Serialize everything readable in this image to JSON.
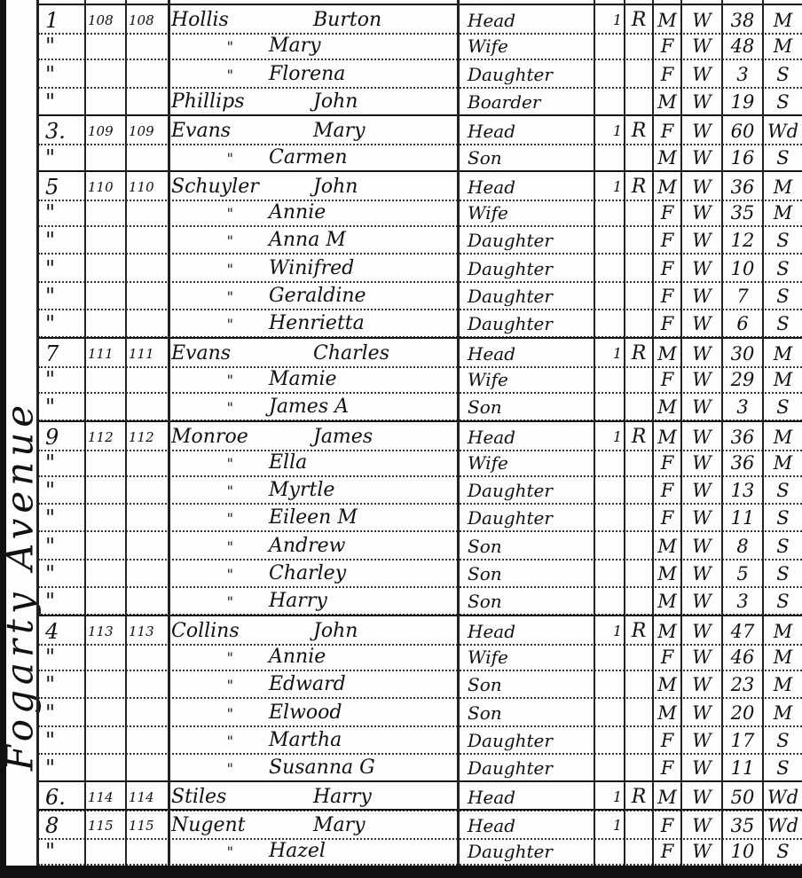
{
  "street_name": "Fogarty Avenue",
  "rows": [
    {
      "line": "1",
      "dwelling": "108",
      "family": "108",
      "surname": "Hollis",
      "given": "Burton",
      "relation": "Head",
      "owned": "1",
      "tenure": "R",
      "sex": "M",
      "race": "W",
      "age": "38",
      "marital": "M"
    },
    {
      "line": "\"",
      "dwelling": "",
      "family": "",
      "surname": "\"",
      "given": "Mary",
      "relation": "Wife",
      "owned": "",
      "tenure": "",
      "sex": "F",
      "race": "W",
      "age": "48",
      "marital": "M"
    },
    {
      "line": "\"",
      "dwelling": "",
      "family": "",
      "surname": "\"",
      "given": "Florena",
      "relation": "Daughter",
      "owned": "",
      "tenure": "",
      "sex": "F",
      "race": "W",
      "age": "3",
      "marital": "S"
    },
    {
      "line": "\"",
      "dwelling": "",
      "family": "",
      "surname": "Phillips",
      "given": "John",
      "relation": "Boarder",
      "owned": "",
      "tenure": "",
      "sex": "M",
      "race": "W",
      "age": "19",
      "marital": "S"
    },
    {
      "line": "3.",
      "dwelling": "109",
      "family": "109",
      "surname": "Evans",
      "given": "Mary",
      "relation": "Head",
      "owned": "1",
      "tenure": "R",
      "sex": "F",
      "race": "W",
      "age": "60",
      "marital": "Wd"
    },
    {
      "line": "\"",
      "dwelling": "",
      "family": "",
      "surname": "\"",
      "given": "Carmen",
      "relation": "Son",
      "owned": "",
      "tenure": "",
      "sex": "M",
      "race": "W",
      "age": "16",
      "marital": "S"
    },
    {
      "line": "5",
      "dwelling": "110",
      "family": "110",
      "surname": "Schuyler",
      "given": "John",
      "relation": "Head",
      "owned": "1",
      "tenure": "R",
      "sex": "M",
      "race": "W",
      "age": "36",
      "marital": "M"
    },
    {
      "line": "\"",
      "dwelling": "",
      "family": "",
      "surname": "\"",
      "given": "Annie",
      "relation": "Wife",
      "owned": "",
      "tenure": "",
      "sex": "F",
      "race": "W",
      "age": "35",
      "marital": "M"
    },
    {
      "line": "\"",
      "dwelling": "",
      "family": "",
      "surname": "\"",
      "given": "Anna M",
      "relation": "Daughter",
      "owned": "",
      "tenure": "",
      "sex": "F",
      "race": "W",
      "age": "12",
      "marital": "S"
    },
    {
      "line": "\"",
      "dwelling": "",
      "family": "",
      "surname": "\"",
      "given": "Winifred",
      "relation": "Daughter",
      "owned": "",
      "tenure": "",
      "sex": "F",
      "race": "W",
      "age": "10",
      "marital": "S"
    },
    {
      "line": "\"",
      "dwelling": "",
      "family": "",
      "surname": "\"",
      "given": "Geraldine",
      "relation": "Daughter",
      "owned": "",
      "tenure": "",
      "sex": "F",
      "race": "W",
      "age": "7",
      "marital": "S"
    },
    {
      "line": "\"",
      "dwelling": "",
      "family": "",
      "surname": "\"",
      "given": "Henrietta",
      "relation": "Daughter",
      "owned": "",
      "tenure": "",
      "sex": "F",
      "race": "W",
      "age": "6",
      "marital": "S"
    },
    {
      "line": "7",
      "dwelling": "111",
      "family": "111",
      "surname": "Evans",
      "given": "Charles",
      "relation": "Head",
      "owned": "1",
      "tenure": "R",
      "sex": "M",
      "race": "W",
      "age": "30",
      "marital": "M"
    },
    {
      "line": "\"",
      "dwelling": "",
      "family": "",
      "surname": "\"",
      "given": "Mamie",
      "relation": "Wife",
      "owned": "",
      "tenure": "",
      "sex": "F",
      "race": "W",
      "age": "29",
      "marital": "M"
    },
    {
      "line": "\"",
      "dwelling": "",
      "family": "",
      "surname": "\"",
      "given": "James A",
      "relation": "Son",
      "owned": "",
      "tenure": "",
      "sex": "M",
      "race": "W",
      "age": "3",
      "marital": "S"
    },
    {
      "line": "9",
      "dwelling": "112",
      "family": "112",
      "surname": "Monroe",
      "given": "James",
      "relation": "Head",
      "owned": "1",
      "tenure": "R",
      "sex": "M",
      "race": "W",
      "age": "36",
      "marital": "M"
    },
    {
      "line": "\"",
      "dwelling": "",
      "family": "",
      "surname": "\"",
      "given": "Ella",
      "relation": "Wife",
      "owned": "",
      "tenure": "",
      "sex": "F",
      "race": "W",
      "age": "36",
      "marital": "M"
    },
    {
      "line": "\"",
      "dwelling": "",
      "family": "",
      "surname": "\"",
      "given": "Myrtle",
      "relation": "Daughter",
      "owned": "",
      "tenure": "",
      "sex": "F",
      "race": "W",
      "age": "13",
      "marital": "S"
    },
    {
      "line": "\"",
      "dwelling": "",
      "family": "",
      "surname": "\"",
      "given": "Eileen M",
      "relation": "Daughter",
      "owned": "",
      "tenure": "",
      "sex": "F",
      "race": "W",
      "age": "11",
      "marital": "S"
    },
    {
      "line": "\"",
      "dwelling": "",
      "family": "",
      "surname": "\"",
      "given": "Andrew",
      "relation": "Son",
      "owned": "",
      "tenure": "",
      "sex": "M",
      "race": "W",
      "age": "8",
      "marital": "S"
    },
    {
      "line": "\"",
      "dwelling": "",
      "family": "",
      "surname": "\"",
      "given": "Charley",
      "relation": "Son",
      "owned": "",
      "tenure": "",
      "sex": "M",
      "race": "W",
      "age": "5",
      "marital": "S"
    },
    {
      "line": "\"",
      "dwelling": "",
      "family": "",
      "surname": "\"",
      "given": "Harry",
      "relation": "Son",
      "owned": "",
      "tenure": "",
      "sex": "M",
      "race": "W",
      "age": "3",
      "marital": "S"
    },
    {
      "line": "4",
      "dwelling": "113",
      "family": "113",
      "surname": "Collins",
      "given": "John",
      "relation": "Head",
      "owned": "1",
      "tenure": "R",
      "sex": "M",
      "race": "W",
      "age": "47",
      "marital": "M"
    },
    {
      "line": "\"",
      "dwelling": "",
      "family": "",
      "surname": "\"",
      "given": "Annie",
      "relation": "Wife",
      "owned": "",
      "tenure": "",
      "sex": "F",
      "race": "W",
      "age": "46",
      "marital": "M"
    },
    {
      "line": "\"",
      "dwelling": "",
      "family": "",
      "surname": "\"",
      "given": "Edward",
      "relation": "Son",
      "owned": "",
      "tenure": "",
      "sex": "M",
      "race": "W",
      "age": "23",
      "marital": "M"
    },
    {
      "line": "\"",
      "dwelling": "",
      "family": "",
      "surname": "\"",
      "given": "Elwood",
      "relation": "Son",
      "owned": "",
      "tenure": "",
      "sex": "M",
      "race": "W",
      "age": "20",
      "marital": "M"
    },
    {
      "line": "\"",
      "dwelling": "",
      "family": "",
      "surname": "\"",
      "given": "Martha",
      "relation": "Daughter",
      "owned": "",
      "tenure": "",
      "sex": "F",
      "race": "W",
      "age": "17",
      "marital": "S"
    },
    {
      "line": "\"",
      "dwelling": "",
      "family": "",
      "surname": "\"",
      "given": "Susanna G",
      "relation": "Daughter",
      "owned": "",
      "tenure": "",
      "sex": "F",
      "race": "W",
      "age": "11",
      "marital": "S"
    },
    {
      "line": "6.",
      "dwelling": "114",
      "family": "114",
      "surname": "Stiles",
      "given": "Harry",
      "relation": "Head",
      "owned": "1",
      "tenure": "R",
      "sex": "M",
      "race": "W",
      "age": "50",
      "marital": "Wd"
    },
    {
      "line": "8",
      "dwelling": "115",
      "family": "115",
      "surname": "Nugent",
      "given": "Mary",
      "relation": "Head",
      "owned": "1",
      "tenure": "",
      "sex": "F",
      "race": "W",
      "age": "35",
      "marital": "Wd"
    },
    {
      "line": "\"",
      "dwelling": "",
      "family": "",
      "surname": "\"",
      "given": "Hazel",
      "relation": "Daughter",
      "owned": "",
      "tenure": "",
      "sex": "F",
      "race": "W",
      "age": "10",
      "marital": "S"
    }
  ]
}
